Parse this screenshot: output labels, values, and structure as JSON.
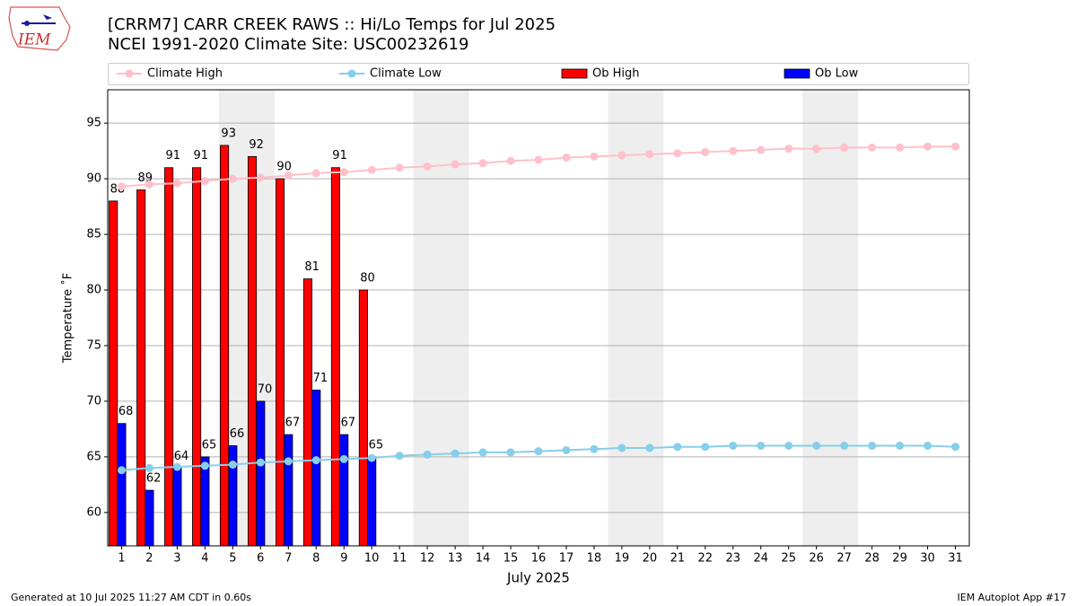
{
  "chart_data": {
    "type": "bar",
    "title": "[CRRM7] CARR CREEK RAWS :: Hi/Lo Temps for Jul 2025",
    "subtitle": "NCEI 1991-2020 Climate Site: USC00232619",
    "xlabel": "July 2025",
    "ylabel": "Temperature ˚F",
    "x": [
      1,
      2,
      3,
      4,
      5,
      6,
      7,
      8,
      9,
      10,
      11,
      12,
      13,
      14,
      15,
      16,
      17,
      18,
      19,
      20,
      21,
      22,
      23,
      24,
      25,
      26,
      27,
      28,
      29,
      30,
      31
    ],
    "xlim": [
      0.5,
      31.5
    ],
    "xticks": [
      1,
      2,
      3,
      4,
      5,
      6,
      7,
      8,
      9,
      10,
      11,
      12,
      13,
      14,
      15,
      16,
      17,
      18,
      19,
      20,
      21,
      22,
      23,
      24,
      25,
      26,
      27,
      28,
      29,
      30,
      31
    ],
    "ylim": [
      57,
      98
    ],
    "yticks": [
      60,
      65,
      70,
      75,
      80,
      85,
      90,
      95
    ],
    "grid": true,
    "legend": "top",
    "weekends": [
      [
        5,
        6
      ],
      [
        12,
        13
      ],
      [
        19,
        20
      ],
      [
        26,
        27
      ]
    ],
    "weekend_color": "#eeeeee",
    "series": [
      {
        "name": "Climate High",
        "type": "line",
        "color": "#ffc0cb",
        "values": [
          89.3,
          89.5,
          89.6,
          89.8,
          90.0,
          90.1,
          90.3,
          90.5,
          90.6,
          90.8,
          91.0,
          91.1,
          91.3,
          91.4,
          91.6,
          91.7,
          91.9,
          92.0,
          92.1,
          92.2,
          92.3,
          92.4,
          92.5,
          92.6,
          92.7,
          92.7,
          92.8,
          92.8,
          92.8,
          92.9,
          92.9
        ]
      },
      {
        "name": "Climate Low",
        "type": "line",
        "color": "#87ceeb",
        "values": [
          63.8,
          64.0,
          64.1,
          64.2,
          64.3,
          64.5,
          64.6,
          64.7,
          64.8,
          64.9,
          65.1,
          65.2,
          65.3,
          65.4,
          65.4,
          65.5,
          65.6,
          65.7,
          65.8,
          65.8,
          65.9,
          65.9,
          66.0,
          66.0,
          66.0,
          66.0,
          66.0,
          66.0,
          66.0,
          66.0,
          65.9
        ]
      },
      {
        "name": "Ob High",
        "type": "bar",
        "color": "#ff0000",
        "values": [
          88,
          89,
          91,
          91,
          93,
          92,
          90,
          81,
          91,
          80,
          null,
          null,
          null,
          null,
          null,
          null,
          null,
          null,
          null,
          null,
          null,
          null,
          null,
          null,
          null,
          null,
          null,
          null,
          null,
          null,
          null
        ]
      },
      {
        "name": "Ob Low",
        "type": "bar",
        "color": "#0000ff",
        "values": [
          68,
          62,
          64,
          65,
          66,
          70,
          67,
          71,
          67,
          65,
          null,
          null,
          null,
          null,
          null,
          null,
          null,
          null,
          null,
          null,
          null,
          null,
          null,
          null,
          null,
          null,
          null,
          null,
          null,
          null,
          null
        ]
      }
    ]
  },
  "page": {
    "logo": "IEM",
    "footer_left": "Generated at 10 Jul 2025 11:27 AM CDT in 0.60s",
    "footer_right": "IEM Autoplot App #17"
  }
}
